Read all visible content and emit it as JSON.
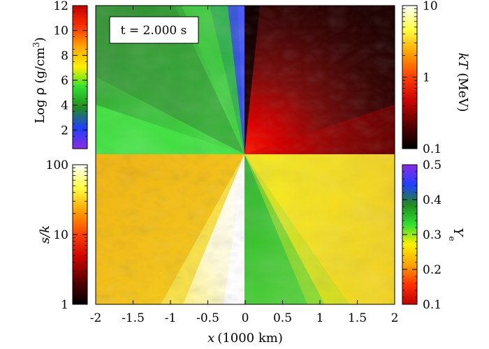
{
  "chart_data": {
    "type": "heatmap",
    "time_label": "t = 2.000 s",
    "x_axis": {
      "label_var": "x",
      "label_unit": "(1000 km)",
      "ticks": [
        "-2",
        "-1.5",
        "-1",
        "-0.5",
        "0",
        "0.5",
        "1",
        "1.5",
        "2"
      ],
      "range": [
        -2,
        2
      ]
    },
    "quadrants": [
      {
        "position": "top-left",
        "quantity": "density",
        "description_colors": [
          "#2a9a2a",
          "#38d038",
          "#3cbd3c",
          "#3a4ac8"
        ]
      },
      {
        "position": "top-right",
        "quantity": "temperature",
        "description_colors": [
          "#250404",
          "#6a0b0b",
          "#e00000"
        ]
      },
      {
        "position": "bottom-left",
        "quantity": "entropy",
        "description_colors": [
          "#f2b80f",
          "#f8e23a",
          "#fffbd0",
          "#ffffff"
        ]
      },
      {
        "position": "bottom-right",
        "quantity": "electron_fraction",
        "description_colors": [
          "#3cc63c",
          "#f7ef10",
          "#f1c81c"
        ]
      }
    ],
    "colorbars": [
      {
        "id": "density",
        "side": "left-top",
        "label_pre": "Log ",
        "label_rho": "ρ",
        "label_unit": " (g/cm",
        "label_sup": "3",
        "label_close": ")",
        "scale": "linear",
        "range": [
          0.5,
          12
        ],
        "ticks": [
          "2",
          "4",
          "6",
          "8",
          "10",
          "12"
        ],
        "tick_values": [
          2,
          4,
          6,
          8,
          10,
          12
        ],
        "colormap": [
          "#8a2be2",
          "#2040ff",
          "#208a20",
          "#30e030",
          "#fff000",
          "#ffa500",
          "#ff3000",
          "#c00000"
        ]
      },
      {
        "id": "temperature",
        "side": "right-top",
        "label_italic": "kT",
        "label_unit": " (MeV)",
        "scale": "log",
        "range": [
          0.1,
          10
        ],
        "ticks": [
          "0.1",
          "1",
          "10"
        ],
        "tick_values": [
          0.1,
          1,
          10
        ],
        "colormap": [
          "#000000",
          "#5a0000",
          "#cc0000",
          "#ff4000",
          "#ffa000",
          "#ffff40",
          "#ffffff"
        ]
      },
      {
        "id": "entropy",
        "side": "left-bottom",
        "label_italic": "s/k",
        "scale": "log",
        "range": [
          1,
          100
        ],
        "ticks": [
          "1",
          "10",
          "100"
        ],
        "tick_values": [
          1,
          10,
          100
        ],
        "colormap": [
          "#000000",
          "#5a0000",
          "#cc0000",
          "#ff4000",
          "#ffa000",
          "#ffff40",
          "#ffffff"
        ]
      },
      {
        "id": "electron_fraction",
        "side": "right-bottom",
        "label_italic": "Y",
        "label_sub": "e",
        "scale": "linear",
        "range": [
          0.1,
          0.5
        ],
        "ticks": [
          "0.1",
          "0.2",
          "0.3",
          "0.4",
          "0.5"
        ],
        "tick_values": [
          0.1,
          0.2,
          0.3,
          0.4,
          0.5
        ],
        "colormap": [
          "#c00000",
          "#ff3000",
          "#ffa500",
          "#fff000",
          "#30e030",
          "#208a20",
          "#2040ff",
          "#8a2be2"
        ]
      }
    ]
  }
}
